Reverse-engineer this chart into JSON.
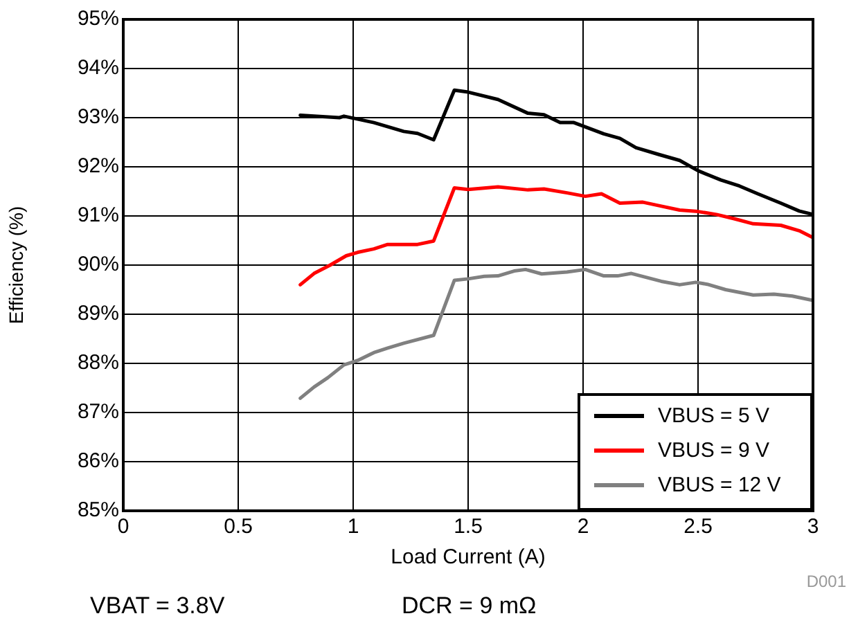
{
  "chart_data": {
    "type": "line",
    "xlabel": "Load Current (A)",
    "ylabel": "Efficiency (%)",
    "xlim": [
      0,
      3
    ],
    "xticks": [
      0,
      0.5,
      1,
      1.5,
      2,
      2.5,
      3
    ],
    "ylim": [
      85,
      95
    ],
    "yticks": [
      {
        "value": 85,
        "label": "85%"
      },
      {
        "value": 86,
        "label": "86%"
      },
      {
        "value": 87,
        "label": "87%"
      },
      {
        "value": 88,
        "label": "88%"
      },
      {
        "value": 89,
        "label": "89%"
      },
      {
        "value": 90,
        "label": "90%"
      },
      {
        "value": 91,
        "label": "91%"
      },
      {
        "value": 92,
        "label": "92%"
      },
      {
        "value": 93,
        "label": "93%"
      },
      {
        "value": 94,
        "label": "94%"
      },
      {
        "value": 95,
        "label": "95%"
      }
    ],
    "grid": true,
    "legend": "bottom right",
    "marker": "none",
    "line_style": "solid",
    "series": [
      {
        "name": "VBUS = 5 V",
        "color": "#000000",
        "x": [
          0.77,
          0.94,
          0.96,
          1.09,
          1.22,
          1.28,
          1.35,
          1.44,
          1.5,
          1.63,
          1.76,
          1.83,
          1.9,
          1.96,
          2.09,
          2.16,
          2.23,
          2.33,
          2.42,
          2.5,
          2.6,
          2.68,
          2.76,
          2.86,
          2.94,
          3.0
        ],
        "values": [
          93.05,
          93.0,
          93.03,
          92.9,
          92.72,
          92.68,
          92.55,
          93.56,
          93.52,
          93.37,
          93.09,
          93.06,
          92.9,
          92.9,
          92.67,
          92.58,
          92.39,
          92.25,
          92.13,
          91.92,
          91.73,
          91.61,
          91.45,
          91.26,
          91.1,
          91.03
        ]
      },
      {
        "name": "VBUS = 9 V",
        "color": "#ff0000",
        "x": [
          0.77,
          0.83,
          0.9,
          0.97,
          1.02,
          1.09,
          1.15,
          1.28,
          1.35,
          1.44,
          1.5,
          1.63,
          1.76,
          1.83,
          1.93,
          2.01,
          2.08,
          2.16,
          2.26,
          2.33,
          2.42,
          2.5,
          2.58,
          2.66,
          2.74,
          2.86,
          2.94,
          3.0
        ],
        "values": [
          89.6,
          89.83,
          90.0,
          90.19,
          90.26,
          90.33,
          90.42,
          90.42,
          90.49,
          91.57,
          91.54,
          91.59,
          91.53,
          91.55,
          91.47,
          91.4,
          91.45,
          91.26,
          91.28,
          91.21,
          91.12,
          91.09,
          91.03,
          90.94,
          90.84,
          90.81,
          90.7,
          90.56
        ]
      },
      {
        "name": "VBUS = 12 V",
        "color": "#808080",
        "x": [
          0.77,
          0.83,
          0.89,
          0.96,
          1.02,
          1.09,
          1.15,
          1.22,
          1.35,
          1.44,
          1.5,
          1.57,
          1.63,
          1.7,
          1.75,
          1.82,
          1.93,
          2.01,
          2.09,
          2.15,
          2.21,
          2.34,
          2.42,
          2.49,
          2.54,
          2.62,
          2.74,
          2.83,
          2.91,
          3.0
        ],
        "values": [
          87.29,
          87.52,
          87.71,
          87.97,
          88.06,
          88.22,
          88.31,
          88.41,
          88.57,
          89.69,
          89.72,
          89.77,
          89.78,
          89.88,
          89.91,
          89.82,
          89.86,
          89.91,
          89.78,
          89.78,
          89.83,
          89.67,
          89.6,
          89.65,
          89.61,
          89.5,
          89.39,
          89.41,
          89.37,
          89.28
        ]
      }
    ],
    "annotations": [
      "VBAT = 3.8V",
      "DCR = 9 mΩ",
      "D001"
    ]
  }
}
